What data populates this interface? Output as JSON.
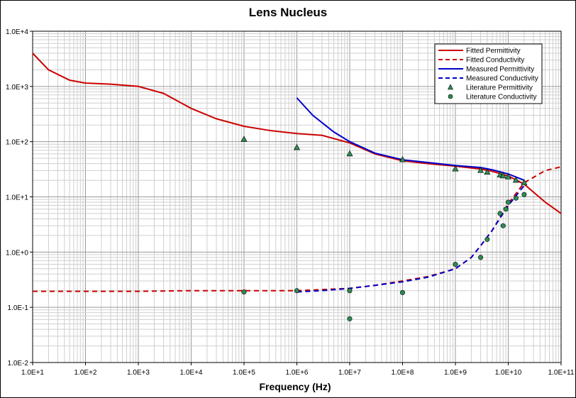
{
  "chart_data": {
    "type": "scatter",
    "title": "Lens Nucleus",
    "xlabel": "Frequency (Hz)",
    "ylabel": "",
    "x_scale": "log",
    "y_scale": "log",
    "xlim": [
      10,
      100000000000
    ],
    "ylim": [
      0.01,
      10000
    ],
    "x_tick_labels": [
      "1.0E+1",
      "1.0E+2",
      "1.0E+3",
      "1.0E+4",
      "1.0E+5",
      "1.0E+6",
      "1.0E+7",
      "1.0E+8",
      "1.0E+9",
      "1.0E+10",
      "1.0E+11"
    ],
    "y_tick_labels": [
      "1.0E-2",
      "1.0E-1",
      "1.0E+0",
      "1.0E+1",
      "1.0E+2",
      "1.0E+3",
      "1.0E+4"
    ],
    "grid": true,
    "legend_position": "top-right",
    "series": [
      {
        "name": "Fitted Permittivity",
        "kind": "line",
        "color": "#cc0000",
        "dash": "solid",
        "x": [
          10,
          20,
          50,
          100,
          300,
          1000,
          3000,
          10000,
          30000,
          100000,
          300000,
          1000000,
          3000000,
          10000000,
          30000000,
          100000000,
          300000000,
          1000000000,
          3000000000,
          5000000000,
          10000000000,
          20000000000,
          50000000000,
          100000000000
        ],
        "y": [
          4000,
          2000,
          1300,
          1150,
          1100,
          1000,
          750,
          400,
          260,
          190,
          160,
          140,
          130,
          95,
          60,
          45,
          40,
          36,
          32,
          29,
          24,
          17,
          8,
          5
        ]
      },
      {
        "name": "Fitted Conductivity",
        "kind": "line",
        "color": "#cc0000",
        "dash": "dashed",
        "x": [
          10,
          100,
          1000,
          10000,
          100000,
          1000000,
          10000000,
          30000000,
          100000000,
          300000000,
          1000000000,
          2000000000,
          3000000000,
          5000000000,
          10000000000,
          20000000000,
          50000000000,
          100000000000
        ],
        "y": [
          0.195,
          0.195,
          0.195,
          0.2,
          0.2,
          0.2,
          0.22,
          0.25,
          0.3,
          0.36,
          0.5,
          0.8,
          1.3,
          2.5,
          7.5,
          18,
          30,
          35
        ]
      },
      {
        "name": "Measured Permittivity",
        "kind": "line",
        "color": "#0000cc",
        "dash": "solid",
        "x": [
          1000000,
          2000000,
          5000000,
          10000000,
          30000000,
          100000000,
          300000000,
          1000000000,
          3000000000,
          5000000000,
          10000000000,
          20000000000
        ],
        "y": [
          620,
          300,
          150,
          100,
          62,
          47,
          42,
          37,
          34,
          31,
          26,
          20
        ]
      },
      {
        "name": "Measured Conductivity",
        "kind": "line",
        "color": "#0000cc",
        "dash": "dashed",
        "x": [
          1000000,
          3000000,
          10000000,
          30000000,
          100000000,
          300000000,
          1000000000,
          2000000000,
          3000000000,
          5000000000,
          10000000000,
          20000000000
        ],
        "y": [
          0.19,
          0.2,
          0.22,
          0.25,
          0.29,
          0.35,
          0.5,
          0.8,
          1.3,
          2.5,
          7.0,
          16
        ]
      },
      {
        "name": "Literature Permittivity",
        "kind": "marker",
        "marker": "triangle",
        "color": "#2e8b57",
        "x": [
          100000,
          1000000,
          10000000,
          100000000,
          1000000000,
          3000000000,
          4000000000,
          7000000000,
          8000000000,
          10000000000,
          14000000000,
          20000000000
        ],
        "y": [
          110,
          78,
          60,
          47,
          32,
          30,
          28,
          25,
          24,
          23,
          20,
          18
        ]
      },
      {
        "name": "Literature Conductivity",
        "kind": "marker",
        "marker": "circle",
        "color": "#2e8b57",
        "x": [
          100000,
          1000000,
          10000000,
          10000000,
          100000000,
          1000000000,
          3000000000,
          4000000000,
          7000000000,
          8000000000,
          9000000000,
          10000000000,
          14000000000,
          20000000000
        ],
        "y": [
          0.19,
          0.2,
          0.2,
          0.062,
          0.185,
          0.6,
          0.8,
          1.7,
          5,
          3,
          6,
          8,
          9.5,
          11
        ]
      }
    ]
  }
}
